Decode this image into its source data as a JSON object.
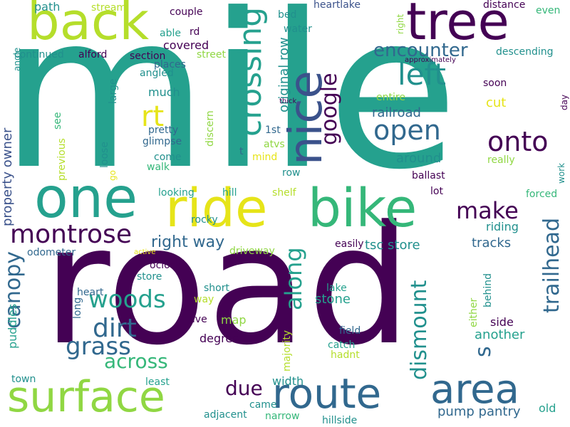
{
  "palette": {
    "dark_purple": "#440154",
    "indigo": "#3b528b",
    "blue": "#31688e",
    "teal": "#21908d",
    "green_teal": "#25a18e",
    "green": "#35b779",
    "lime": "#90d743",
    "yellow_green": "#b5de2b",
    "yellow": "#e6e419",
    "background": "#ffffff"
  },
  "words": [
    {
      "text": "mile"
    },
    {
      "text": "road"
    },
    {
      "text": "ride"
    },
    {
      "text": "bike"
    },
    {
      "text": "one"
    },
    {
      "text": "back"
    },
    {
      "text": "tree"
    },
    {
      "text": "nice"
    },
    {
      "text": "surface"
    },
    {
      "text": "route"
    },
    {
      "text": "area"
    },
    {
      "text": "crossing"
    },
    {
      "text": "encounter"
    },
    {
      "text": "left"
    },
    {
      "text": "open"
    },
    {
      "text": "onto"
    },
    {
      "text": "google"
    },
    {
      "text": "rt"
    },
    {
      "text": "montrose"
    },
    {
      "text": "make"
    },
    {
      "text": "trailhead"
    },
    {
      "text": "dismount"
    },
    {
      "text": "along"
    },
    {
      "text": "woods"
    },
    {
      "text": "dirt"
    },
    {
      "text": "grass"
    },
    {
      "text": "canopy"
    },
    {
      "text": "due"
    },
    {
      "text": "s"
    },
    {
      "text": "across"
    },
    {
      "text": "right way"
    },
    {
      "text": "pump pantry"
    },
    {
      "text": "tsc store"
    },
    {
      "text": "original row"
    },
    {
      "text": "property owner"
    },
    {
      "text": "railroad"
    },
    {
      "text": "around"
    },
    {
      "text": "covered"
    },
    {
      "text": "much"
    },
    {
      "text": "cut"
    },
    {
      "text": "tracks"
    },
    {
      "text": "riding"
    },
    {
      "text": "side"
    },
    {
      "text": "another"
    },
    {
      "text": "stone"
    },
    {
      "text": "puddles"
    },
    {
      "text": "width"
    },
    {
      "text": "old"
    },
    {
      "text": "path"
    },
    {
      "text": "stream"
    },
    {
      "text": "couple"
    },
    {
      "text": "bed"
    },
    {
      "text": "heartlake"
    },
    {
      "text": "distance"
    },
    {
      "text": "even"
    },
    {
      "text": "right"
    },
    {
      "text": "water"
    },
    {
      "text": "able"
    },
    {
      "text": "rd"
    },
    {
      "text": "continued"
    },
    {
      "text": "alford"
    },
    {
      "text": "section"
    },
    {
      "text": "street"
    },
    {
      "text": "angle"
    },
    {
      "text": "places"
    },
    {
      "text": "angled"
    },
    {
      "text": "descending"
    },
    {
      "text": "approximately"
    },
    {
      "text": "soon"
    },
    {
      "text": "entire"
    },
    {
      "text": "day"
    },
    {
      "text": "thick"
    },
    {
      "text": "1st"
    },
    {
      "text": "discern"
    },
    {
      "text": "pretty"
    },
    {
      "text": "glimpse"
    },
    {
      "text": "come"
    },
    {
      "text": "walk"
    },
    {
      "text": "atvs"
    },
    {
      "text": "mind"
    },
    {
      "text": "t"
    },
    {
      "text": "row"
    },
    {
      "text": "ballast"
    },
    {
      "text": "really"
    },
    {
      "text": "work"
    },
    {
      "text": "see"
    },
    {
      "text": "previous"
    },
    {
      "text": "large"
    },
    {
      "text": "loose"
    },
    {
      "text": "go"
    },
    {
      "text": "looking"
    },
    {
      "text": "hill"
    },
    {
      "text": "shelf"
    },
    {
      "text": "lot"
    },
    {
      "text": "forced"
    },
    {
      "text": "rocky"
    },
    {
      "text": "driveway"
    },
    {
      "text": "easily"
    },
    {
      "text": "odometer"
    },
    {
      "text": "active"
    },
    {
      "text": "oclock"
    },
    {
      "text": "store"
    },
    {
      "text": "heart"
    },
    {
      "text": "short"
    },
    {
      "text": "way"
    },
    {
      "text": "lake"
    },
    {
      "text": "long"
    },
    {
      "text": "map"
    },
    {
      "text": "live"
    },
    {
      "text": "degree"
    },
    {
      "text": "behind"
    },
    {
      "text": "either"
    },
    {
      "text": "field"
    },
    {
      "text": "catch"
    },
    {
      "text": "hadnt"
    },
    {
      "text": "majority"
    },
    {
      "text": "town"
    },
    {
      "text": "least"
    },
    {
      "text": "came"
    },
    {
      "text": "adjacent"
    },
    {
      "text": "narrow"
    },
    {
      "text": "hillside"
    }
  ]
}
